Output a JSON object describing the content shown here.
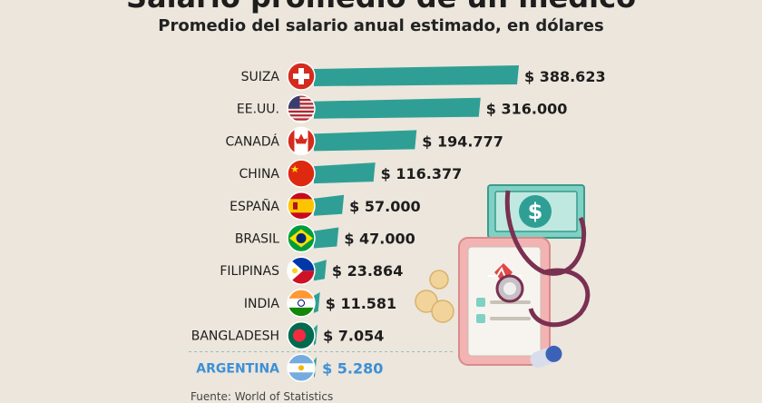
{
  "header": {
    "title": "Salario promedio de un médico",
    "subtitle": "Promedio del salario anual estimado, en dólares"
  },
  "footer": {
    "source": "Fuente: World of Statistics"
  },
  "colors": {
    "bar": "#2f9f95",
    "label": "#1d1d1d",
    "highlight": "#3d8fd6",
    "background": "#ece6dc"
  },
  "chart_data": {
    "type": "bar",
    "orientation": "horizontal",
    "title": "Salario promedio de un médico",
    "subtitle": "Promedio del salario anual estimado, en dólares",
    "categories": [
      "SUIZA",
      "EE.UU.",
      "CANADÁ",
      "CHINA",
      "ESPAÑA",
      "BRASIL",
      "FILIPINAS",
      "INDIA",
      "BANGLADESH",
      "ARGENTINA"
    ],
    "values": [
      388623,
      316000,
      194777,
      116377,
      57000,
      47000,
      23864,
      11581,
      7054,
      5280
    ],
    "value_labels": [
      "$ 388.623",
      "$ 316.000",
      "$ 194.777",
      "$ 116.377",
      "$ 57.000",
      "$ 47.000",
      "$ 23.864",
      "$ 11.581",
      "$ 7.054",
      "$ 5.280"
    ],
    "flags": [
      "switzerland-flag-icon",
      "usa-flag-icon",
      "canada-flag-icon",
      "china-flag-icon",
      "spain-flag-icon",
      "brazil-flag-icon",
      "philippines-flag-icon",
      "india-flag-icon",
      "bangladesh-flag-icon",
      "argentina-flag-icon"
    ],
    "highlight": "ARGENTINA",
    "xlim": [
      0,
      388623
    ],
    "grid": false,
    "legend": "none"
  }
}
